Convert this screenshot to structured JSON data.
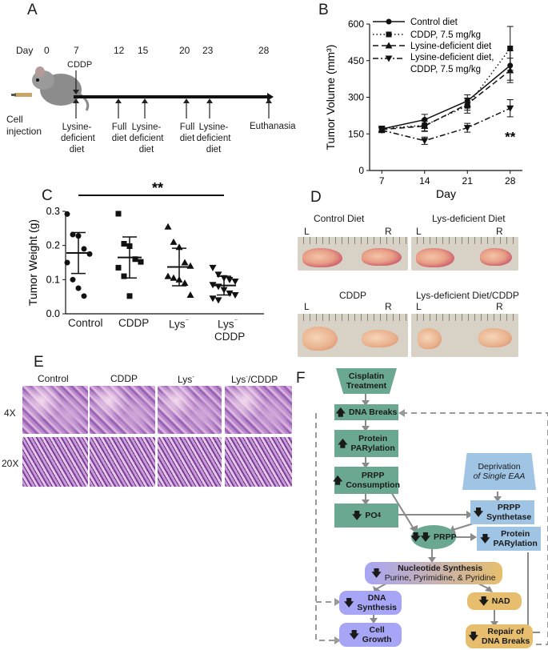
{
  "panels": {
    "A": "A",
    "B": "B",
    "C": "C",
    "D": "D",
    "E": "E",
    "F": "F"
  },
  "panel_a": {
    "day_label": "Day",
    "days": [
      "0",
      "7",
      "12",
      "15",
      "20",
      "23",
      "28"
    ],
    "cddp": "CDDP",
    "cell_injection": [
      "Cell",
      "injection"
    ],
    "events": [
      [
        "Lysine-",
        "deficient",
        "diet"
      ],
      [
        "Full",
        "diet"
      ],
      [
        "Lysine-",
        "deficient",
        "diet"
      ],
      [
        "Full",
        "diet"
      ],
      [
        "Lysine-",
        "deficient",
        "diet"
      ],
      [
        "Euthanasia"
      ]
    ]
  },
  "chart_data": [
    {
      "type": "line",
      "xlabel": "Day",
      "ylabel": "Tumor Volume (mm³)",
      "x": [
        7,
        14,
        21,
        28
      ],
      "ylim": [
        0,
        600
      ],
      "yticks": [
        "0",
        "150",
        "300",
        "450",
        "600"
      ],
      "xticks": [
        "7",
        "14",
        "21",
        "28"
      ],
      "legend": "top-left",
      "series": [
        {
          "name": "Control diet",
          "values": [
            170,
            208,
            285,
            430
          ],
          "err": [
            12,
            22,
            25,
            60
          ],
          "marker": "circle",
          "dash": "solid"
        },
        {
          "name": "CDDP, 7.5 mg/kg",
          "values": [
            172,
            185,
            265,
            500
          ],
          "err": [
            10,
            25,
            30,
            90
          ],
          "marker": "square",
          "dash": "dot"
        },
        {
          "name": "Lysine-deficient diet",
          "values": [
            168,
            182,
            272,
            410
          ],
          "err": [
            10,
            20,
            25,
            50
          ],
          "marker": "triangle-up",
          "dash": "dash"
        },
        {
          "name": "Lysine-deficient diet, CDDP, 7.5 mg/kg",
          "values": [
            165,
            122,
            175,
            255
          ],
          "err": [
            10,
            15,
            18,
            35
          ],
          "marker": "triangle-down",
          "dash": "dashdot"
        }
      ],
      "annotation": "**"
    },
    {
      "type": "scatter",
      "ylabel": "Tumor Weight (g)",
      "ylim": [
        0.0,
        0.3
      ],
      "yticks": [
        "0.0",
        "0.1",
        "0.2",
        "0.3"
      ],
      "categories": [
        "Control",
        "CDDP",
        "Lys",
        "Lys CDDP"
      ],
      "significance": "**",
      "groups": [
        {
          "marker": "circle",
          "mean": 0.178,
          "sd": [
            0.118,
            0.238
          ],
          "values": [
            0.292,
            0.232,
            0.228,
            0.19,
            0.175,
            0.15,
            0.1,
            0.075,
            0.052
          ]
        },
        {
          "marker": "square",
          "mean": 0.165,
          "sd": [
            0.105,
            0.225
          ],
          "values": [
            0.293,
            0.205,
            0.198,
            0.16,
            0.152,
            0.135,
            0.11,
            0.052
          ]
        },
        {
          "marker": "triangle-up",
          "mean": 0.137,
          "sd": [
            0.082,
            0.192
          ],
          "values": [
            0.255,
            0.21,
            0.195,
            0.15,
            0.14,
            0.11,
            0.105,
            0.1,
            0.09,
            0.055
          ]
        },
        {
          "marker": "triangle-down",
          "mean": 0.083,
          "sd": [
            0.055,
            0.11
          ],
          "values": [
            0.135,
            0.115,
            0.105,
            0.1,
            0.095,
            0.085,
            0.08,
            0.07,
            0.06,
            0.055,
            0.045,
            0.04
          ]
        }
      ]
    }
  ],
  "panel_c": {
    "cat_control": "Control",
    "cat_cddp": "CDDP",
    "cat_lys": "Lys",
    "cat_lys2": "Lys",
    "cat_cddp2": "CDDP"
  },
  "panel_d": {
    "titles": [
      "Control Diet",
      "Lys-deficient Diet",
      "CDDP",
      "Lys-deficient Diet/CDDP"
    ],
    "l": "L",
    "r": "R"
  },
  "panel_e": {
    "columns": [
      "Control",
      "CDDP",
      "Lys",
      "Lys",
      "/CDDP"
    ],
    "rows": [
      "4X",
      "20X"
    ],
    "minus": "-"
  },
  "panel_f": {
    "cisplatin": [
      "Cisplatin",
      "Treatment"
    ],
    "dna_breaks": "DNA Breaks",
    "protein_parylation": [
      "Protein",
      "PARylation"
    ],
    "prpp_consumption": [
      "PRPP",
      "Consumption"
    ],
    "po4": "PO",
    "po4_sub": "4",
    "prpp": "PRPP",
    "deprivation": [
      "Deprivation",
      "of Single EAA"
    ],
    "prpp_synthetase": [
      "PRPP",
      "Synthetase"
    ],
    "protein_parylation2": [
      "Protein",
      "PARylation"
    ],
    "nucleotide": [
      "Nucleotide Synthesis",
      "Purine, Pyrimidine, & Pyridine"
    ],
    "dna_synthesis": [
      "DNA",
      "Synthesis"
    ],
    "cell_growth": [
      "Cell",
      "Growth"
    ],
    "nad": "NAD",
    "repair": [
      "Repair of",
      "DNA Breaks"
    ]
  },
  "colors": {
    "green": "#6aa892",
    "blue": "#9fc4e4",
    "purple": "#a7a5f5",
    "gold": "#e6be6e",
    "arrow_gray": "#8a8a8a"
  }
}
